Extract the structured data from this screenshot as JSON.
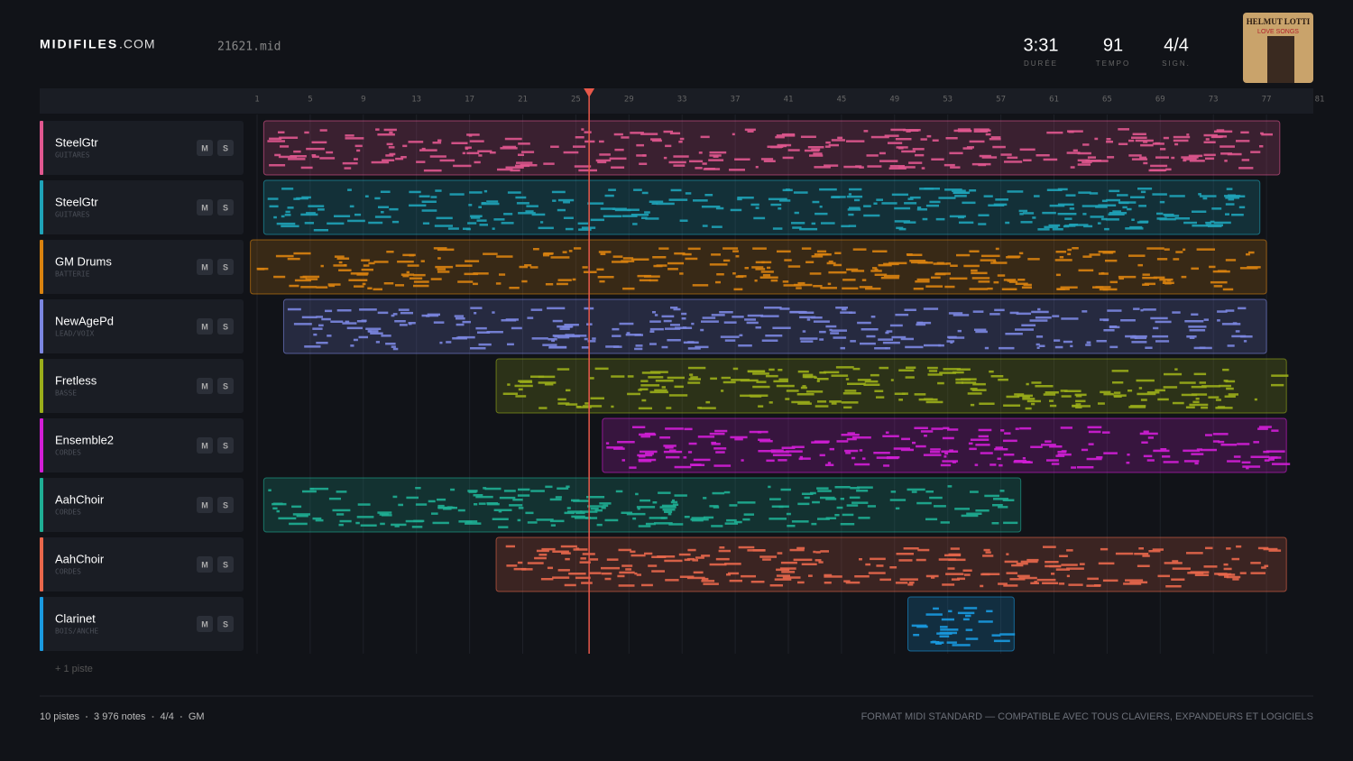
{
  "header": {
    "logo": "MIDIFILES",
    "logo_suffix": ".COM",
    "file": "21621.mid",
    "stats": [
      {
        "value": "3:31",
        "label": "DURÉE"
      },
      {
        "value": "91",
        "label": "TEMPO"
      },
      {
        "value": "4/4",
        "label": "SIGN."
      }
    ],
    "album": {
      "artist": "HELMUT LOTTI",
      "title": "LOVE SONGS"
    }
  },
  "timeline": {
    "bars": [
      1,
      5,
      9,
      13,
      17,
      21,
      25,
      29,
      33,
      37,
      41,
      45,
      49,
      53,
      57,
      61,
      65,
      69,
      73,
      77,
      81
    ],
    "playhead": 26,
    "mute": "M",
    "solo": "S",
    "more": "+ 1 piste",
    "tracks": [
      {
        "name": "SteelGtr",
        "category": "GUITARES",
        "color": "#e0578f",
        "start": 1.5,
        "end": 78
      },
      {
        "name": "SteelGtr",
        "category": "GUITARES",
        "color": "#1fa3b8",
        "start": 1.5,
        "end": 76.5
      },
      {
        "name": "GM Drums",
        "category": "BATTERIE",
        "color": "#d9820f",
        "start": 0.5,
        "end": 77
      },
      {
        "name": "NewAgePd",
        "category": "LEAD/VOIX",
        "color": "#7b86e0",
        "start": 3,
        "end": 77
      },
      {
        "name": "Fretless",
        "category": "BASSE",
        "color": "#9aad1a",
        "start": 19,
        "end": 78.5
      },
      {
        "name": "Ensemble2",
        "category": "CORDES",
        "color": "#d21ed6",
        "start": 27,
        "end": 78.5
      },
      {
        "name": "AahChoir",
        "category": "CORDES",
        "color": "#1fae94",
        "start": 1.5,
        "end": 58.5
      },
      {
        "name": "AahChoir",
        "category": "CORDES",
        "color": "#e8674b",
        "start": 19,
        "end": 78.5
      },
      {
        "name": "Clarinet",
        "category": "BOIS/ANCHE",
        "color": "#1a9ae0",
        "start": 50,
        "end": 58
      }
    ]
  },
  "footer": {
    "stats": [
      "10 pistes",
      "3 976 notes",
      "4/4",
      "GM"
    ],
    "note": "FORMAT MIDI STANDARD — COMPATIBLE AVEC TOUS CLAVIERS, EXPANDEURS ET LOGICIELS"
  }
}
